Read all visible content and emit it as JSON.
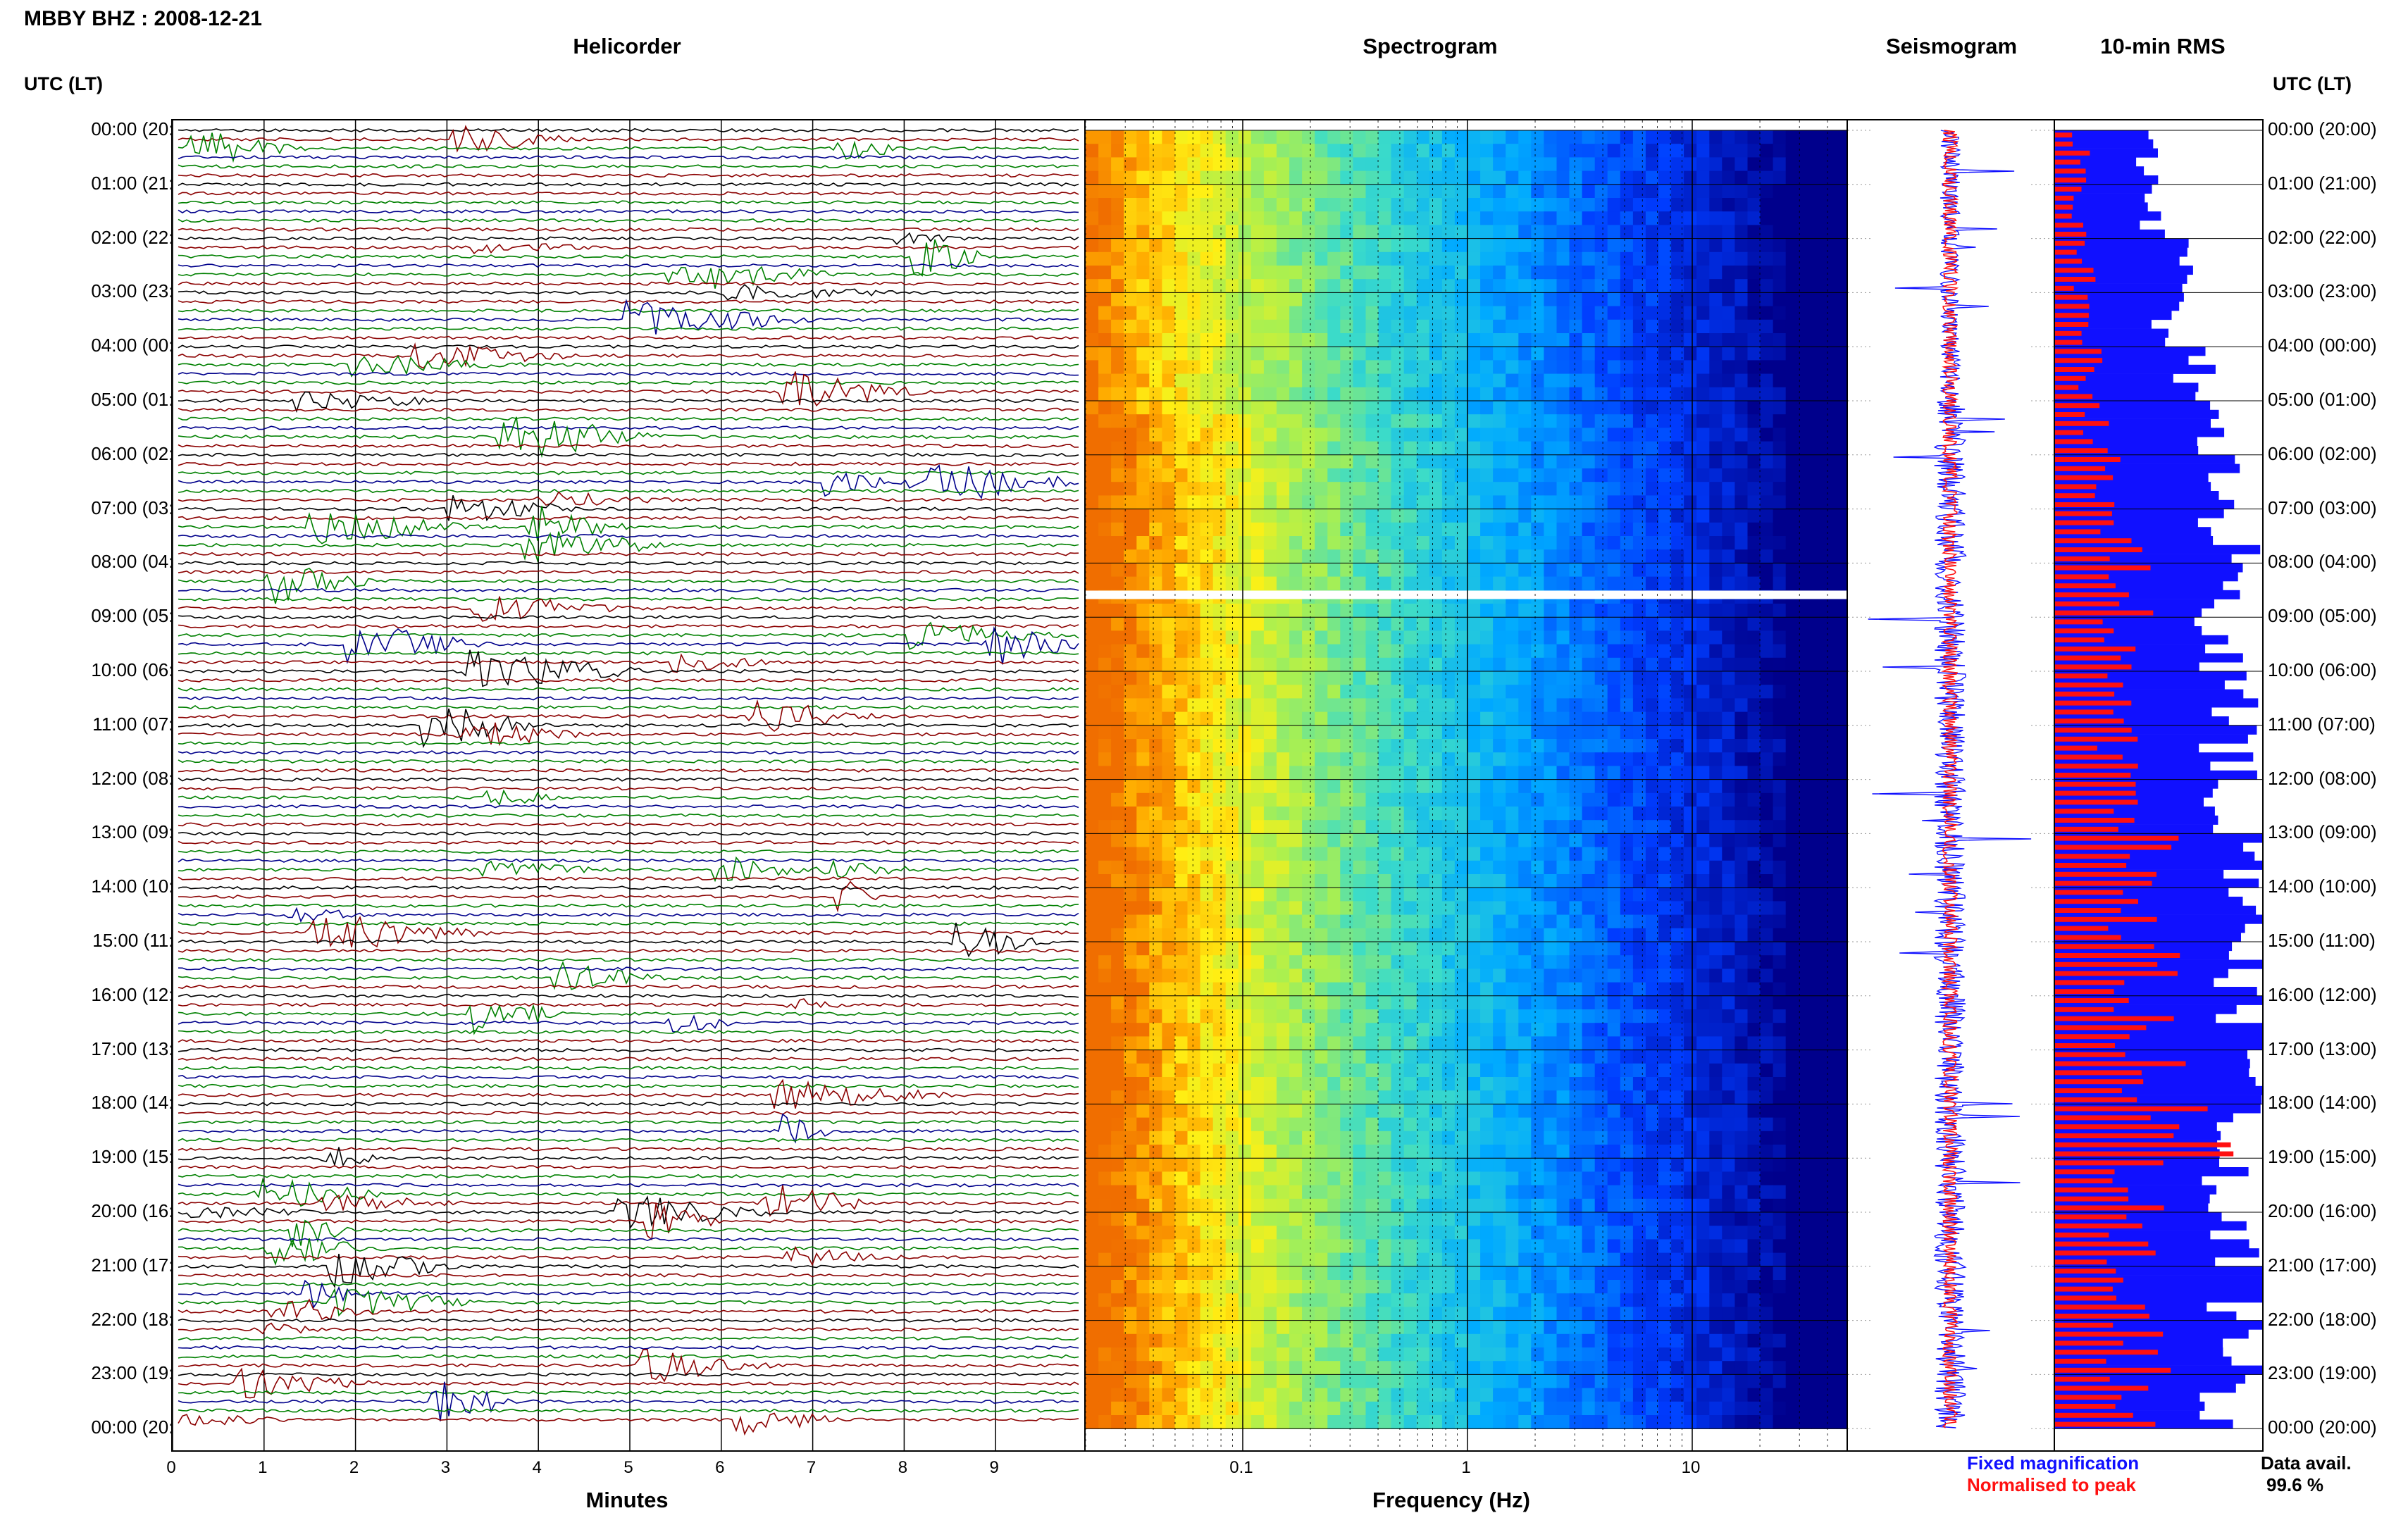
{
  "header": {
    "station_title": "MBBY BHZ : 2008-12-21",
    "utc_label_left": "UTC (LT)",
    "utc_label_right": "UTC (LT)"
  },
  "panels": {
    "helicorder_title": "Helicorder",
    "spectrogram_title": "Spectrogram",
    "seismogram_title": "Seismogram",
    "rms_title": "10-min RMS"
  },
  "time_labels": [
    "00:00 (20:00)",
    "01:00 (21:00)",
    "02:00 (22:00)",
    "03:00 (23:00)",
    "04:00 (00:00)",
    "05:00 (01:00)",
    "06:00 (02:00)",
    "07:00 (03:00)",
    "08:00 (04:00)",
    "09:00 (05:00)",
    "10:00 (06:00)",
    "11:00 (07:00)",
    "12:00 (08:00)",
    "13:00 (09:00)",
    "14:00 (10:00)",
    "15:00 (11:00)",
    "16:00 (12:00)",
    "17:00 (13:00)",
    "18:00 (14:00)",
    "19:00 (15:00)",
    "20:00 (16:00)",
    "21:00 (17:00)",
    "22:00 (18:00)",
    "23:00 (19:00)",
    "00:00 (20:00)"
  ],
  "helicorder": {
    "xlabel": "Minutes",
    "xticks": [
      "0",
      "1",
      "2",
      "3",
      "4",
      "5",
      "6",
      "7",
      "8",
      "9"
    ],
    "xlim": [
      0,
      10
    ],
    "trace_colors": [
      "#000000",
      "#8b0000",
      "#008000",
      "#00008b"
    ]
  },
  "spectrogram": {
    "xlabel": "Frequency (Hz)",
    "xticks": [
      "0.1",
      "1",
      "10"
    ],
    "xscale": "log",
    "xlim": [
      0.02,
      50
    ],
    "gap_at_hour": 8.6
  },
  "legend": {
    "fixed": "Fixed magnification",
    "normalised": "Normalised to peak",
    "fixed_color": "#1010ff",
    "normalised_color": "#ff1010"
  },
  "availability": {
    "label": "Data avail.",
    "value": "99.6 %"
  },
  "chart_data": {
    "type": "bar",
    "title": "10-min RMS",
    "xlabel": "",
    "ylabel": "UTC (LT)",
    "categories": [
      "00:00",
      "01:00",
      "02:00",
      "03:00",
      "04:00",
      "05:00",
      "06:00",
      "07:00",
      "08:00",
      "09:00",
      "10:00",
      "11:00",
      "12:00",
      "13:00",
      "14:00",
      "15:00",
      "16:00",
      "17:00",
      "18:00",
      "19:00",
      "20:00",
      "21:00",
      "22:00",
      "23:00"
    ],
    "series": [
      {
        "name": "Fixed magnification",
        "values": [
          0.45,
          0.5,
          0.6,
          0.55,
          0.7,
          0.75,
          0.85,
          0.85,
          0.8,
          0.8,
          0.9,
          0.85,
          0.85,
          0.9,
          0.95,
          0.9,
          0.95,
          0.95,
          0.95,
          0.85,
          0.85,
          0.9,
          0.9,
          0.85
        ]
      },
      {
        "name": "Normalised to peak",
        "values": [
          0.12,
          0.13,
          0.14,
          0.14,
          0.18,
          0.2,
          0.25,
          0.3,
          0.35,
          0.3,
          0.35,
          0.3,
          0.3,
          0.45,
          0.35,
          0.45,
          0.45,
          0.5,
          0.75,
          0.4,
          0.35,
          0.45,
          0.4,
          0.4
        ]
      }
    ]
  }
}
